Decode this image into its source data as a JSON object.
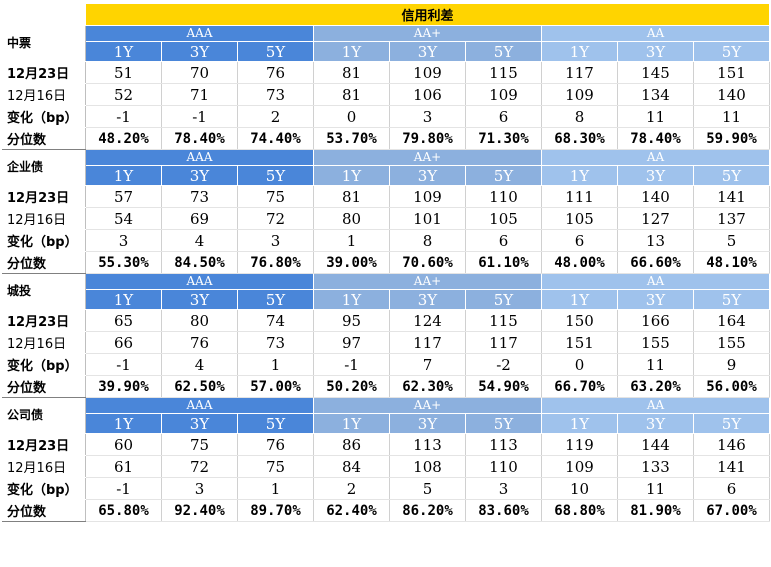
{
  "title": "信用利差",
  "groups": [
    "AAA",
    "AA+",
    "AA"
  ],
  "tenors": [
    "1Y",
    "3Y",
    "5Y"
  ],
  "sections": [
    {
      "name": "中票",
      "rows": [
        {
          "label": "12月23日",
          "bold": true,
          "values": [
            "51",
            "70",
            "76",
            "81",
            "109",
            "115",
            "117",
            "145",
            "151"
          ]
        },
        {
          "label": "12月16日",
          "bold": false,
          "values": [
            "52",
            "71",
            "73",
            "81",
            "106",
            "109",
            "109",
            "134",
            "140"
          ]
        },
        {
          "label": "变化（bp）",
          "bold": true,
          "values": [
            "-1",
            "-1",
            "2",
            "0",
            "3",
            "6",
            "8",
            "11",
            "11"
          ]
        },
        {
          "label": "分位数",
          "bold": true,
          "values": [
            "48.20%",
            "78.40%",
            "74.40%",
            "53.70%",
            "79.80%",
            "71.30%",
            "68.30%",
            "78.40%",
            "59.90%"
          ]
        }
      ]
    },
    {
      "name": "企业债",
      "rows": [
        {
          "label": "12月23日",
          "bold": true,
          "values": [
            "57",
            "73",
            "75",
            "81",
            "109",
            "110",
            "111",
            "140",
            "141"
          ]
        },
        {
          "label": "12月16日",
          "bold": false,
          "values": [
            "54",
            "69",
            "72",
            "80",
            "101",
            "105",
            "105",
            "127",
            "137"
          ]
        },
        {
          "label": "变化（bp）",
          "bold": true,
          "values": [
            "3",
            "4",
            "3",
            "1",
            "8",
            "6",
            "6",
            "13",
            "5"
          ]
        },
        {
          "label": "分位数",
          "bold": true,
          "values": [
            "55.30%",
            "84.50%",
            "76.80%",
            "39.00%",
            "70.60%",
            "61.10%",
            "48.00%",
            "66.60%",
            "48.10%"
          ]
        }
      ]
    },
    {
      "name": "城投",
      "rows": [
        {
          "label": "12月23日",
          "bold": true,
          "values": [
            "65",
            "80",
            "74",
            "95",
            "124",
            "115",
            "150",
            "166",
            "164"
          ]
        },
        {
          "label": "12月16日",
          "bold": false,
          "values": [
            "66",
            "76",
            "73",
            "97",
            "117",
            "117",
            "151",
            "155",
            "155"
          ]
        },
        {
          "label": "变化（bp）",
          "bold": true,
          "values": [
            "-1",
            "4",
            "1",
            "-1",
            "7",
            "-2",
            "0",
            "11",
            "9"
          ]
        },
        {
          "label": "分位数",
          "bold": true,
          "values": [
            "39.90%",
            "62.50%",
            "57.00%",
            "50.20%",
            "62.30%",
            "54.90%",
            "66.70%",
            "63.20%",
            "56.00%"
          ]
        }
      ]
    },
    {
      "name": "公司债",
      "rows": [
        {
          "label": "12月23日",
          "bold": true,
          "values": [
            "60",
            "75",
            "76",
            "86",
            "113",
            "113",
            "119",
            "144",
            "146"
          ]
        },
        {
          "label": "12月16日",
          "bold": false,
          "values": [
            "61",
            "72",
            "75",
            "84",
            "108",
            "110",
            "109",
            "133",
            "141"
          ]
        },
        {
          "label": "变化（bp）",
          "bold": true,
          "values": [
            "-1",
            "3",
            "1",
            "2",
            "5",
            "3",
            "10",
            "11",
            "6"
          ]
        },
        {
          "label": "分位数",
          "bold": true,
          "values": [
            "65.80%",
            "92.40%",
            "89.70%",
            "62.40%",
            "86.20%",
            "83.60%",
            "68.80%",
            "81.90%",
            "67.00%"
          ]
        }
      ]
    }
  ]
}
